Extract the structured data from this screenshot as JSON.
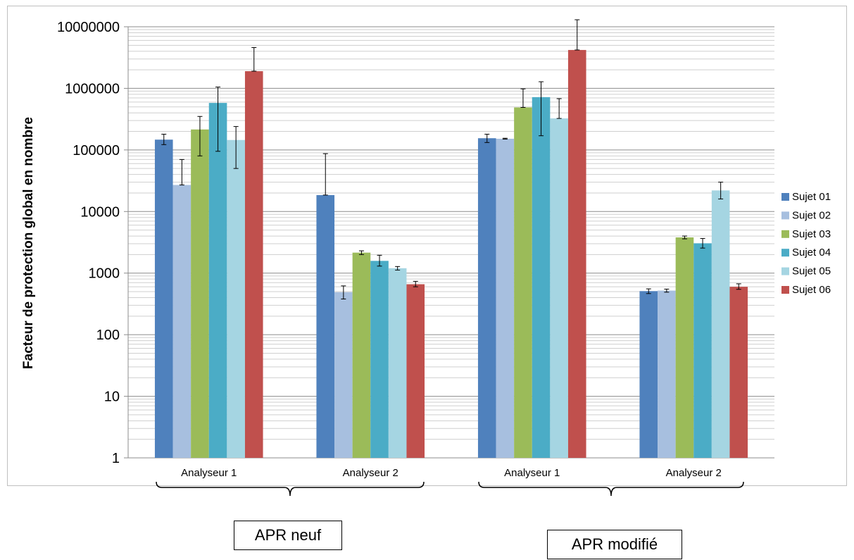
{
  "chart_data": {
    "type": "bar",
    "yscale": "log",
    "ylim": [
      1,
      10000000
    ],
    "ylabel": "Facteur de protection global en nombre",
    "yticks": [
      "1",
      "10",
      "100",
      "1000",
      "10000",
      "100000",
      "1000000",
      "10000000"
    ],
    "categories": [
      "Analyseur 1",
      "Analyseur 2",
      "Analyseur 1",
      "Analyseur 2"
    ],
    "groups": [
      "APR neuf",
      "APR modifié"
    ],
    "legend_position": "right",
    "grid": true,
    "series": [
      {
        "name": "Sujet 01",
        "color": "#4f81bd",
        "values": [
          147000,
          18500,
          155000,
          510
        ],
        "err_low": [
          122000,
          18500,
          132000,
          465
        ],
        "err_high": [
          180000,
          87000,
          180000,
          555
        ]
      },
      {
        "name": "Sujet 02",
        "color": "#a7bfdf",
        "values": [
          27000,
          490,
          152000,
          520
        ],
        "err_low": [
          27000,
          380,
          150000,
          490
        ],
        "err_high": [
          70000,
          620,
          155000,
          550
        ]
      },
      {
        "name": "Sujet 03",
        "color": "#9bbb59",
        "values": [
          215000,
          2150,
          490000,
          3800
        ],
        "err_low": [
          80000,
          2000,
          490000,
          3600
        ],
        "err_high": [
          350000,
          2300,
          980000,
          4000
        ]
      },
      {
        "name": "Sujet 04",
        "color": "#4bacc6",
        "values": [
          580000,
          1580,
          720000,
          3050
        ],
        "err_low": [
          95000,
          1300,
          170000,
          2550
        ],
        "err_high": [
          1050000,
          1950,
          1280000,
          3650
        ]
      },
      {
        "name": "Sujet 05",
        "color": "#a5d5e2",
        "values": [
          145000,
          1200,
          325000,
          22000
        ],
        "err_low": [
          50000,
          1120,
          325000,
          16000
        ],
        "err_high": [
          240000,
          1280,
          680000,
          30000
        ]
      },
      {
        "name": "Sujet 06",
        "color": "#c0504d",
        "values": [
          1900000,
          660,
          4200000,
          600
        ],
        "err_low": [
          1900000,
          600,
          4200000,
          545
        ],
        "err_high": [
          4600000,
          735,
          13000000,
          670
        ]
      }
    ]
  }
}
